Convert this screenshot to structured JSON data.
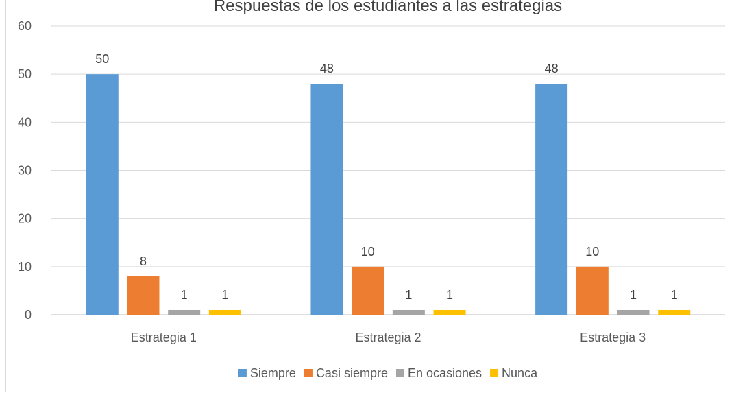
{
  "chart_data": {
    "type": "bar",
    "title": "Respuestas de los estudiantes a las estrategias",
    "categories": [
      "Estrategia 1",
      "Estrategia 2",
      "Estrategia 3"
    ],
    "series": [
      {
        "name": "Siempre",
        "color": "#5b9bd5",
        "values": [
          50,
          48,
          48
        ]
      },
      {
        "name": "Casi siempre",
        "color": "#ed7d31",
        "values": [
          8,
          10,
          10
        ]
      },
      {
        "name": "En ocasiones",
        "color": "#a5a5a5",
        "values": [
          1,
          1,
          1
        ]
      },
      {
        "name": "Nunca",
        "color": "#ffc000",
        "values": [
          1,
          1,
          1
        ]
      }
    ],
    "ylim": [
      0,
      60
    ],
    "yticks": [
      0,
      10,
      20,
      30,
      40,
      50,
      60
    ],
    "grid": true,
    "legend_position": "bottom",
    "data_labels": true
  }
}
